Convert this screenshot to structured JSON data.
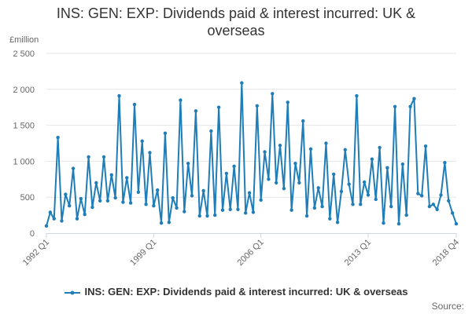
{
  "chart_data": {
    "type": "line",
    "title_lines": [
      "INS: GEN: EXP: Dividends paid & interest incurred: UK &",
      "overseas"
    ],
    "ylabel": "£million",
    "ylim": [
      0,
      2500
    ],
    "yticks": [
      0,
      500,
      1000,
      1500,
      2000,
      2500
    ],
    "ytick_labels": [
      "0",
      "500",
      "1 000",
      "1 500",
      "2 000",
      "2 500"
    ],
    "xtick_labels": [
      "1992 Q1",
      "1999 Q1",
      "2006 Q1",
      "2013 Q1",
      "2018 Q4"
    ],
    "xtick_indices": [
      0,
      28,
      56,
      84,
      107
    ],
    "grid": "horizontal",
    "legend_position": "bottom",
    "series": [
      {
        "name": "INS: GEN: EXP: Dividends paid & interest incurred: UK & overseas",
        "color": "#1f7db8",
        "quarters": [
          "1992 Q1",
          "1992 Q2",
          "1992 Q3",
          "1992 Q4",
          "1993 Q1",
          "1993 Q2",
          "1993 Q3",
          "1993 Q4",
          "1994 Q1",
          "1994 Q2",
          "1994 Q3",
          "1994 Q4",
          "1995 Q1",
          "1995 Q2",
          "1995 Q3",
          "1995 Q4",
          "1996 Q1",
          "1996 Q2",
          "1996 Q3",
          "1996 Q4",
          "1997 Q1",
          "1997 Q2",
          "1997 Q3",
          "1997 Q4",
          "1998 Q1",
          "1998 Q2",
          "1998 Q3",
          "1998 Q4",
          "1999 Q1",
          "1999 Q2",
          "1999 Q3",
          "1999 Q4",
          "2000 Q1",
          "2000 Q2",
          "2000 Q3",
          "2000 Q4",
          "2001 Q1",
          "2001 Q2",
          "2001 Q3",
          "2001 Q4",
          "2002 Q1",
          "2002 Q2",
          "2002 Q3",
          "2002 Q4",
          "2003 Q1",
          "2003 Q2",
          "2003 Q3",
          "2003 Q4",
          "2004 Q1",
          "2004 Q2",
          "2004 Q3",
          "2004 Q4",
          "2005 Q1",
          "2005 Q2",
          "2005 Q3",
          "2005 Q4",
          "2006 Q1",
          "2006 Q2",
          "2006 Q3",
          "2006 Q4",
          "2007 Q1",
          "2007 Q2",
          "2007 Q3",
          "2007 Q4",
          "2008 Q1",
          "2008 Q2",
          "2008 Q3",
          "2008 Q4",
          "2009 Q1",
          "2009 Q2",
          "2009 Q3",
          "2009 Q4",
          "2010 Q1",
          "2010 Q2",
          "2010 Q3",
          "2010 Q4",
          "2011 Q1",
          "2011 Q2",
          "2011 Q3",
          "2011 Q4",
          "2012 Q1",
          "2012 Q2",
          "2012 Q3",
          "2012 Q4",
          "2013 Q1",
          "2013 Q2",
          "2013 Q3",
          "2013 Q4",
          "2014 Q1",
          "2014 Q2",
          "2014 Q3",
          "2014 Q4",
          "2015 Q1",
          "2015 Q2",
          "2015 Q3",
          "2015 Q4",
          "2016 Q1",
          "2016 Q2",
          "2016 Q3",
          "2016 Q4",
          "2017 Q1",
          "2017 Q2",
          "2017 Q3",
          "2017 Q4",
          "2018 Q1",
          "2018 Q2",
          "2018 Q3",
          "2018 Q4"
        ],
        "values": [
          100,
          290,
          200,
          1330,
          170,
          540,
          380,
          900,
          200,
          480,
          260,
          1060,
          360,
          700,
          450,
          1060,
          450,
          810,
          490,
          1910,
          430,
          770,
          420,
          1790,
          570,
          1280,
          400,
          1120,
          380,
          600,
          140,
          1390,
          150,
          490,
          350,
          1850,
          300,
          970,
          520,
          1700,
          240,
          590,
          240,
          1420,
          250,
          1750,
          320,
          830,
          330,
          930,
          330,
          2090,
          280,
          560,
          290,
          1770,
          460,
          1130,
          750,
          1940,
          700,
          1220,
          620,
          1820,
          320,
          970,
          700,
          1560,
          240,
          1170,
          350,
          630,
          370,
          1250,
          200,
          820,
          150,
          580,
          1160,
          680,
          400,
          1910,
          400,
          710,
          530,
          1030,
          470,
          1190,
          140,
          910,
          370,
          1760,
          130,
          960,
          250,
          1760,
          1870,
          550,
          520,
          1210,
          370,
          400,
          330,
          530,
          980,
          450,
          280,
          130
        ]
      }
    ]
  },
  "source_label": "Source:"
}
